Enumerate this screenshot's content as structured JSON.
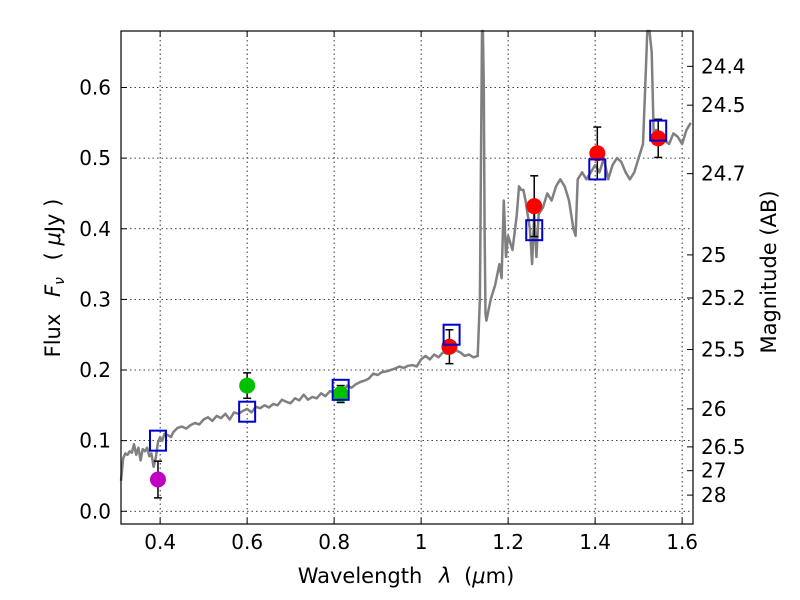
{
  "chart_data": {
    "type": "scatter",
    "title": "",
    "xlabel": "Wavelength",
    "xlabel_symbol": "λ",
    "xlabel_unit_open": "(",
    "xlabel_unit_mu": "μ",
    "xlabel_unit_rest": "m)",
    "ylabel": "Flux",
    "ylabel_symbol": "F",
    "ylabel_symbol_sub": "ν",
    "ylabel_unit_open": "(",
    "ylabel_unit_mu": "μ",
    "ylabel_unit_rest": "Jy )",
    "ylabel_right": "Magnitude (AB)",
    "xlim": [
      0.31,
      1.625
    ],
    "ylim": [
      -0.018,
      0.68
    ],
    "xticks": [
      0.4,
      0.6,
      0.8,
      1.0,
      1.2,
      1.4,
      1.6
    ],
    "xtick_labels": [
      "0.4",
      "0.6",
      "0.8",
      "1",
      "1.2",
      "1.4",
      "1.6"
    ],
    "yticks": [
      0.0,
      0.1,
      0.2,
      0.3,
      0.4,
      0.5,
      0.6
    ],
    "ytick_labels": [
      "0.0",
      "0.1",
      "0.2",
      "0.3",
      "0.4",
      "0.5",
      "0.6"
    ],
    "right_ticks": [
      {
        "label": "24.4",
        "flux": 0.63
      },
      {
        "label": "24.5",
        "flux": 0.575
      },
      {
        "label": "24.7",
        "flux": 0.478
      },
      {
        "label": "25",
        "flux": 0.363
      },
      {
        "label": "25.2",
        "flux": 0.302
      },
      {
        "label": "25.5",
        "flux": 0.229
      },
      {
        "label": "26",
        "flux": 0.145
      },
      {
        "label": "26.5",
        "flux": 0.0912
      },
      {
        "label": "27",
        "flux": 0.0575
      },
      {
        "label": "28",
        "flux": 0.0229
      }
    ],
    "model_spectrum": {
      "name": "model SED",
      "color": "#808080",
      "x": [
        0.31,
        0.315,
        0.32,
        0.325,
        0.33,
        0.335,
        0.34,
        0.345,
        0.35,
        0.355,
        0.36,
        0.365,
        0.37,
        0.375,
        0.38,
        0.385,
        0.39,
        0.395,
        0.4,
        0.405,
        0.41,
        0.42,
        0.425,
        0.43,
        0.44,
        0.45,
        0.46,
        0.47,
        0.48,
        0.49,
        0.5,
        0.51,
        0.52,
        0.53,
        0.54,
        0.55,
        0.56,
        0.57,
        0.58,
        0.59,
        0.6,
        0.61,
        0.62,
        0.63,
        0.64,
        0.65,
        0.66,
        0.67,
        0.68,
        0.69,
        0.7,
        0.71,
        0.72,
        0.73,
        0.74,
        0.75,
        0.76,
        0.77,
        0.78,
        0.79,
        0.8,
        0.81,
        0.82,
        0.83,
        0.84,
        0.85,
        0.86,
        0.87,
        0.88,
        0.89,
        0.9,
        0.91,
        0.92,
        0.93,
        0.94,
        0.95,
        0.96,
        0.97,
        0.98,
        0.99,
        1.0,
        1.01,
        1.02,
        1.03,
        1.04,
        1.05,
        1.06,
        1.07,
        1.08,
        1.09,
        1.1,
        1.11,
        1.12,
        1.13,
        1.135,
        1.14,
        1.142,
        1.144,
        1.146,
        1.148,
        1.15,
        1.16,
        1.17,
        1.18,
        1.185,
        1.19,
        1.195,
        1.2,
        1.21,
        1.22,
        1.225,
        1.23,
        1.235,
        1.24,
        1.25,
        1.255,
        1.26,
        1.265,
        1.27,
        1.28,
        1.29,
        1.3,
        1.31,
        1.32,
        1.33,
        1.34,
        1.35,
        1.355,
        1.36,
        1.37,
        1.38,
        1.39,
        1.4,
        1.41,
        1.42,
        1.43,
        1.44,
        1.45,
        1.46,
        1.47,
        1.48,
        1.49,
        1.5,
        1.51,
        1.515,
        1.52,
        1.525,
        1.53,
        1.535,
        1.54,
        1.55,
        1.56,
        1.57,
        1.58,
        1.59,
        1.6,
        1.61,
        1.62
      ],
      "y": [
        0.043,
        0.075,
        0.082,
        0.08,
        0.085,
        0.083,
        0.095,
        0.08,
        0.09,
        0.072,
        0.088,
        0.085,
        0.09,
        0.078,
        0.082,
        0.063,
        0.076,
        0.098,
        0.105,
        0.1,
        0.11,
        0.107,
        0.105,
        0.112,
        0.118,
        0.12,
        0.117,
        0.122,
        0.125,
        0.123,
        0.13,
        0.133,
        0.128,
        0.135,
        0.132,
        0.138,
        0.13,
        0.14,
        0.138,
        0.142,
        0.145,
        0.14,
        0.148,
        0.146,
        0.15,
        0.147,
        0.152,
        0.15,
        0.158,
        0.155,
        0.153,
        0.16,
        0.157,
        0.165,
        0.158,
        0.162,
        0.16,
        0.167,
        0.163,
        0.17,
        0.168,
        0.172,
        0.17,
        0.178,
        0.175,
        0.18,
        0.183,
        0.185,
        0.188,
        0.195,
        0.193,
        0.197,
        0.198,
        0.2,
        0.202,
        0.205,
        0.203,
        0.206,
        0.207,
        0.205,
        0.215,
        0.22,
        0.215,
        0.222,
        0.218,
        0.225,
        0.223,
        0.23,
        0.228,
        0.225,
        0.22,
        0.222,
        0.218,
        0.22,
        0.3,
        0.68,
        0.68,
        0.6,
        0.4,
        0.28,
        0.27,
        0.3,
        0.32,
        0.35,
        0.33,
        0.44,
        0.36,
        0.39,
        0.37,
        0.42,
        0.46,
        0.455,
        0.455,
        0.44,
        0.4,
        0.35,
        0.42,
        0.36,
        0.42,
        0.43,
        0.45,
        0.44,
        0.46,
        0.47,
        0.46,
        0.44,
        0.4,
        0.39,
        0.47,
        0.48,
        0.47,
        0.48,
        0.49,
        0.48,
        0.5,
        0.47,
        0.49,
        0.5,
        0.495,
        0.48,
        0.47,
        0.48,
        0.5,
        0.52,
        0.6,
        0.68,
        0.68,
        0.65,
        0.52,
        0.54,
        0.53,
        0.525,
        0.52,
        0.535,
        0.53,
        0.52,
        0.54,
        0.55
      ]
    },
    "model_bands": {
      "name": "model photometry",
      "marker": "open-square",
      "color": "#0000cc",
      "x": [
        0.395,
        0.6,
        0.815,
        1.07,
        1.26,
        1.405,
        1.545
      ],
      "y": [
        0.1,
        0.141,
        0.172,
        0.25,
        0.398,
        0.484,
        0.539
      ]
    },
    "observed": [
      {
        "name": "observed (violet)",
        "color": "#c000c0",
        "x": [
          0.395
        ],
        "y": [
          0.045
        ],
        "err": [
          0.026
        ]
      },
      {
        "name": "observed (green)",
        "color": "#00c000",
        "x": [
          0.6,
          0.815
        ],
        "y": [
          0.178,
          0.166
        ],
        "err": [
          0.018,
          0.012
        ]
      },
      {
        "name": "observed (red)",
        "color": "#ff0000",
        "x": [
          1.065,
          1.26,
          1.405,
          1.545
        ],
        "y": [
          0.233,
          0.432,
          0.507,
          0.528
        ],
        "err": [
          0.024,
          0.043,
          0.037,
          0.027
        ]
      }
    ]
  }
}
